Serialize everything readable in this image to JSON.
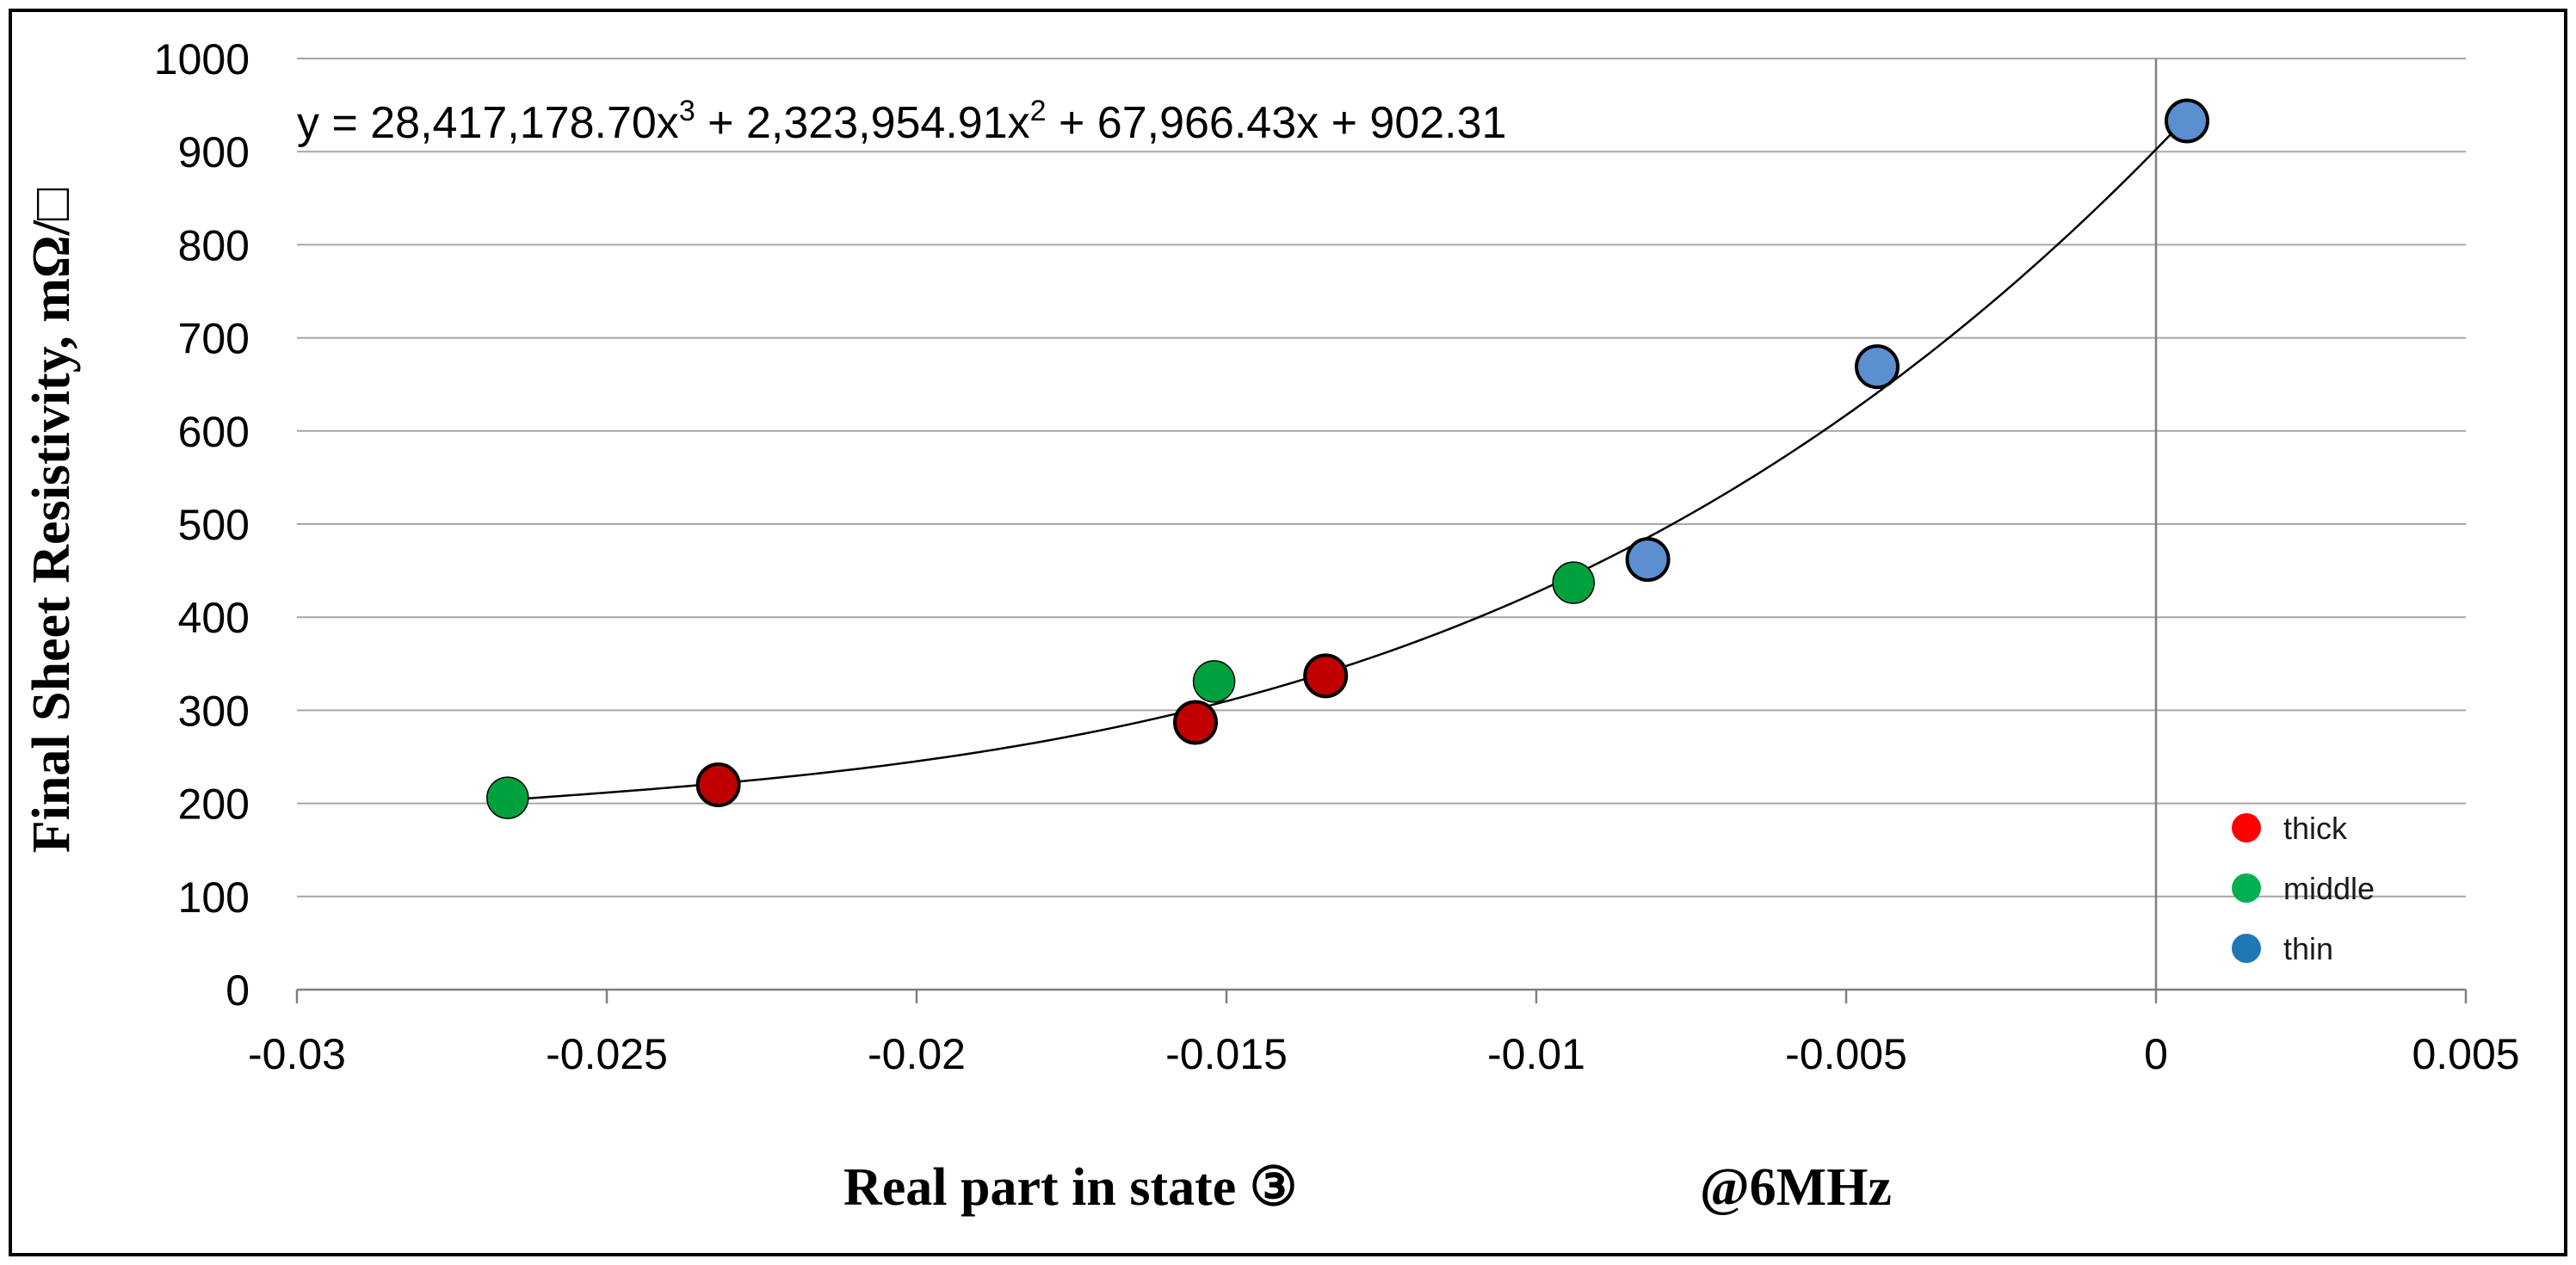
{
  "chart_data": {
    "type": "scatter",
    "title": "",
    "xlabel": "Real part in state ③",
    "xlabel_suffix": "@6MHz",
    "ylabel": "Final Sheet Resistivity, mΩ/□",
    "xlim": [
      -0.03,
      0.005
    ],
    "ylim": [
      0,
      1000
    ],
    "xticks": [
      -0.03,
      -0.025,
      -0.02,
      -0.015,
      -0.01,
      -0.005,
      0,
      0.005
    ],
    "xtick_labels": [
      "-0.03",
      "-0.025",
      "-0.02",
      "-0.015",
      "-0.01",
      "-0.005",
      "0",
      "0.005"
    ],
    "yticks": [
      0,
      100,
      200,
      300,
      400,
      500,
      600,
      700,
      800,
      900,
      1000
    ],
    "ytick_labels": [
      "0",
      "100",
      "200",
      "300",
      "400",
      "500",
      "600",
      "700",
      "800",
      "900",
      "1000"
    ],
    "grid": true,
    "legend_position": "bottom-right",
    "trendline": {
      "type": "polynomial-3",
      "coefficients": [
        28417178.7,
        2323954.91,
        67966.43,
        902.31
      ],
      "x_range": [
        -0.0266,
        0.0005
      ],
      "equation_prefix": "y = 28,417,178.70x",
      "equation_exp1": "3",
      "equation_mid1": " + 2,323,954.91x",
      "equation_exp2": "2",
      "equation_rest": " + 67,966.43x + 902.31"
    },
    "series": [
      {
        "name": "thick",
        "color": "#c00000",
        "legend_color": "#ff0000",
        "x": [
          -0.0232,
          -0.0155,
          -0.0134
        ],
        "y": [
          220,
          287,
          337
        ]
      },
      {
        "name": "middle",
        "color": "#00a03c",
        "legend_color": "#00b050",
        "x": [
          -0.0266,
          -0.0152,
          -0.0094
        ],
        "y": [
          206,
          331,
          437
        ]
      },
      {
        "name": "thin",
        "color": "#5b8fd0",
        "legend_color": "#1f77b4",
        "x": [
          -0.0082,
          -0.0045,
          0.0005
        ],
        "y": [
          462,
          669,
          933
        ]
      }
    ]
  }
}
